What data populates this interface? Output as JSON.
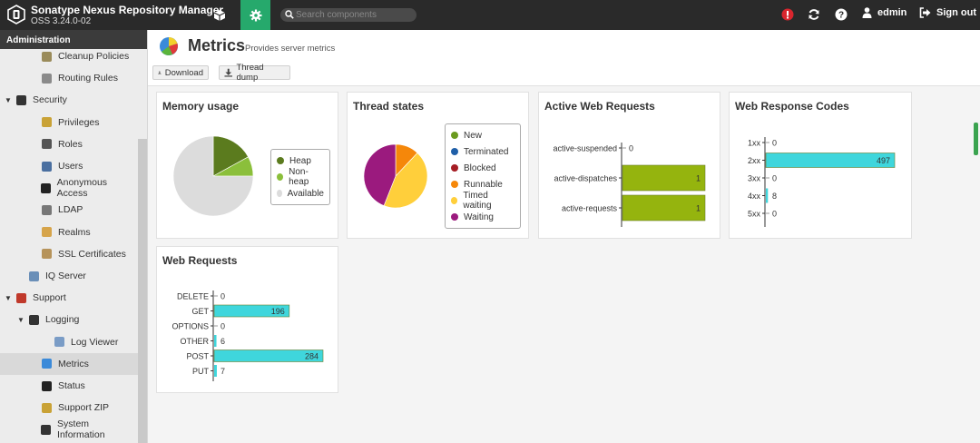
{
  "app": {
    "title": "Sonatype Nexus Repository Manager",
    "version": "OSS 3.24.0-02",
    "search_placeholder": "Search components",
    "username": "edmin",
    "signout_label": "Sign out"
  },
  "sidebar": {
    "header": "Administration",
    "items": [
      {
        "label": "Cleanup Policies",
        "icon": "broom-icon"
      },
      {
        "label": "Routing Rules",
        "icon": "routing-icon"
      },
      {
        "label": "Security",
        "icon": "eye-icon"
      },
      {
        "label": "Privileges",
        "icon": "medal-icon"
      },
      {
        "label": "Roles",
        "icon": "role-icon"
      },
      {
        "label": "Users",
        "icon": "users-icon"
      },
      {
        "label": "Anonymous Access",
        "icon": "user-icon"
      },
      {
        "label": "LDAP",
        "icon": "book-icon"
      },
      {
        "label": "Realms",
        "icon": "shield-icon"
      },
      {
        "label": "SSL Certificates",
        "icon": "certificate-icon"
      },
      {
        "label": "IQ Server",
        "icon": "iq-icon"
      },
      {
        "label": "Support",
        "icon": "lifebuoy-icon"
      },
      {
        "label": "Logging",
        "icon": "book-icon"
      },
      {
        "label": "Log Viewer",
        "icon": "log-icon"
      },
      {
        "label": "Metrics",
        "icon": "pie-icon"
      },
      {
        "label": "Status",
        "icon": "status-icon"
      },
      {
        "label": "Support ZIP",
        "icon": "zip-icon"
      },
      {
        "label": "System Information",
        "icon": "globe-icon"
      }
    ]
  },
  "page": {
    "title": "Metrics",
    "subtitle": "Provides server metrics",
    "download_label": "Download",
    "thread_dump_label": "Thread dump"
  },
  "panels": {
    "memory_title": "Memory usage",
    "threads_title": "Thread states",
    "active_title": "Active Web Requests",
    "codes_title": "Web Response Codes",
    "requests_title": "Web Requests"
  },
  "chart_data": [
    {
      "type": "pie",
      "title": "Memory usage",
      "labels": [
        "Heap",
        "Non-heap",
        "Available"
      ],
      "values": [
        17,
        8,
        75
      ],
      "colors": [
        "#5b7b1e",
        "#8bbf3b",
        "#dcdcdc"
      ]
    },
    {
      "type": "pie",
      "title": "Thread states",
      "labels": [
        "New",
        "Terminated",
        "Blocked",
        "Runnable",
        "Timed waiting",
        "Waiting"
      ],
      "values": [
        0,
        0,
        0,
        12,
        44,
        44
      ],
      "colors": [
        "#6a9a1f",
        "#1f5fa8",
        "#a51d24",
        "#f5870a",
        "#ffcf3b",
        "#9b1a7e"
      ]
    },
    {
      "type": "bar",
      "title": "Active Web Requests",
      "categories": [
        "active-suspended",
        "active-dispatches",
        "active-requests"
      ],
      "values": [
        0,
        1,
        1
      ],
      "xlim": [
        0,
        1
      ],
      "color": "#95b40e"
    },
    {
      "type": "bar",
      "title": "Web Response Codes",
      "categories": [
        "1xx",
        "2xx",
        "3xx",
        "4xx",
        "5xx"
      ],
      "values": [
        0,
        497,
        0,
        8,
        0
      ],
      "xlim": [
        0,
        497
      ],
      "color": "#3fd6dc"
    },
    {
      "type": "bar",
      "title": "Web Requests",
      "categories": [
        "DELETE",
        "GET",
        "OPTIONS",
        "OTHER",
        "POST",
        "PUT"
      ],
      "values": [
        0,
        196,
        0,
        6,
        284,
        7
      ],
      "xlim": [
        0,
        284
      ],
      "color": "#3fd6dc"
    }
  ]
}
